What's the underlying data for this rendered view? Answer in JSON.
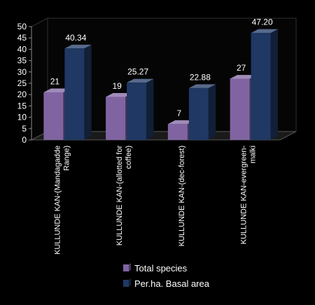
{
  "chart_data": {
    "type": "bar",
    "categories": [
      [
        "KULLUNDE KAN-(Mandagadde",
        "Range)"
      ],
      [
        "KULLUNDE KAN-(allotted for",
        "coffee)"
      ],
      [
        "KULLUNDE KAN-(dec-forest)"
      ],
      [
        "KULLUNDE KAN-evergreen-",
        "malki"
      ]
    ],
    "series": [
      {
        "name": "Total species",
        "values": [
          21,
          19,
          7,
          27
        ],
        "labels": [
          "21",
          "19",
          "7",
          "27"
        ],
        "color": "#8064A2"
      },
      {
        "name": "Per.ha. Basal area",
        "values": [
          40.34,
          25.27,
          22.88,
          47.2
        ],
        "labels": [
          "40.34",
          "25.27",
          "22.88",
          "47.20"
        ],
        "color": "#1F3864"
      }
    ],
    "ylim": [
      0,
      50
    ],
    "yticks": [
      "0",
      "5",
      "10",
      "15",
      "20",
      "25",
      "30",
      "35",
      "40",
      "45",
      "50"
    ],
    "grid": false,
    "legend": "bottom",
    "title": "",
    "xlabel": "",
    "ylabel": ""
  }
}
